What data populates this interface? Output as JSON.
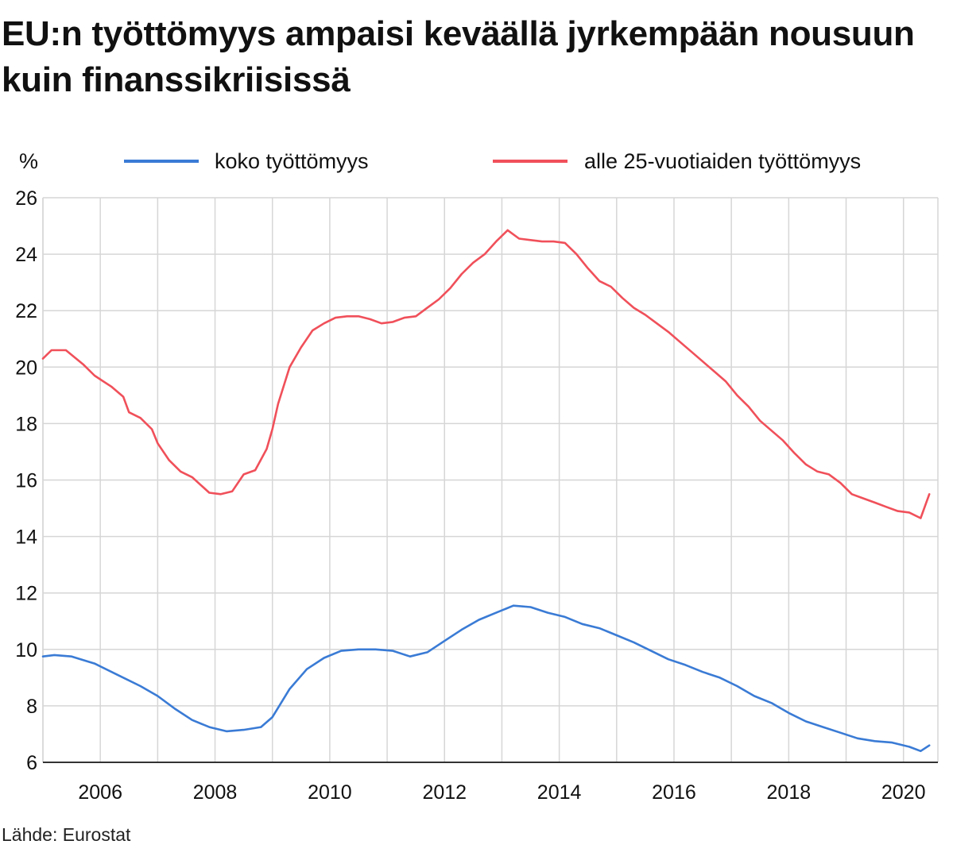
{
  "title": "EU:n työttömyys ampaisi keväällä jyrkempään nousuun kuin finanssikriisissä",
  "source": "Lähde: Eurostat",
  "chart_data": {
    "type": "line",
    "ylabel": "%",
    "ylim": [
      6,
      26
    ],
    "yticks": [
      "6",
      "8",
      "10",
      "12",
      "14",
      "16",
      "18",
      "20",
      "22",
      "24",
      "26"
    ],
    "xlim": [
      2005.0,
      2020.6
    ],
    "xticks": [
      "2006",
      "2008",
      "2010",
      "2012",
      "2014",
      "2016",
      "2018",
      "2020"
    ],
    "grid": true,
    "legend_position": "top",
    "series": [
      {
        "name": "koko työttömyys",
        "color": "#3a7bd5",
        "points": [
          [
            2005.0,
            9.75
          ],
          [
            2005.2,
            9.8
          ],
          [
            2005.5,
            9.75
          ],
          [
            2005.9,
            9.5
          ],
          [
            2006.3,
            9.1
          ],
          [
            2006.7,
            8.7
          ],
          [
            2007.0,
            8.35
          ],
          [
            2007.3,
            7.9
          ],
          [
            2007.6,
            7.5
          ],
          [
            2007.9,
            7.25
          ],
          [
            2008.2,
            7.1
          ],
          [
            2008.5,
            7.15
          ],
          [
            2008.8,
            7.25
          ],
          [
            2009.0,
            7.6
          ],
          [
            2009.3,
            8.6
          ],
          [
            2009.6,
            9.3
          ],
          [
            2009.9,
            9.7
          ],
          [
            2010.2,
            9.95
          ],
          [
            2010.5,
            10.0
          ],
          [
            2010.8,
            10.0
          ],
          [
            2011.1,
            9.95
          ],
          [
            2011.4,
            9.75
          ],
          [
            2011.7,
            9.9
          ],
          [
            2012.0,
            10.3
          ],
          [
            2012.3,
            10.7
          ],
          [
            2012.6,
            11.05
          ],
          [
            2012.9,
            11.3
          ],
          [
            2013.2,
            11.55
          ],
          [
            2013.5,
            11.5
          ],
          [
            2013.8,
            11.3
          ],
          [
            2014.1,
            11.15
          ],
          [
            2014.4,
            10.9
          ],
          [
            2014.7,
            10.75
          ],
          [
            2015.0,
            10.5
          ],
          [
            2015.3,
            10.25
          ],
          [
            2015.6,
            9.95
          ],
          [
            2015.9,
            9.65
          ],
          [
            2016.2,
            9.45
          ],
          [
            2016.5,
            9.2
          ],
          [
            2016.8,
            9.0
          ],
          [
            2017.1,
            8.7
          ],
          [
            2017.4,
            8.35
          ],
          [
            2017.7,
            8.1
          ],
          [
            2018.0,
            7.75
          ],
          [
            2018.3,
            7.45
          ],
          [
            2018.6,
            7.25
          ],
          [
            2018.9,
            7.05
          ],
          [
            2019.2,
            6.85
          ],
          [
            2019.5,
            6.75
          ],
          [
            2019.8,
            6.7
          ],
          [
            2020.1,
            6.55
          ],
          [
            2020.3,
            6.4
          ],
          [
            2020.45,
            6.6
          ]
        ]
      },
      {
        "name": "alle 25-vuotiaiden työttömyys",
        "color": "#f0505a",
        "points": [
          [
            2005.0,
            20.3
          ],
          [
            2005.15,
            20.6
          ],
          [
            2005.4,
            20.6
          ],
          [
            2005.7,
            20.1
          ],
          [
            2005.9,
            19.7
          ],
          [
            2006.2,
            19.3
          ],
          [
            2006.4,
            18.95
          ],
          [
            2006.5,
            18.4
          ],
          [
            2006.7,
            18.2
          ],
          [
            2006.9,
            17.8
          ],
          [
            2007.0,
            17.3
          ],
          [
            2007.2,
            16.7
          ],
          [
            2007.4,
            16.3
          ],
          [
            2007.6,
            16.1
          ],
          [
            2007.9,
            15.55
          ],
          [
            2008.1,
            15.5
          ],
          [
            2008.3,
            15.6
          ],
          [
            2008.5,
            16.2
          ],
          [
            2008.7,
            16.35
          ],
          [
            2008.9,
            17.1
          ],
          [
            2009.0,
            17.8
          ],
          [
            2009.1,
            18.7
          ],
          [
            2009.3,
            20.0
          ],
          [
            2009.5,
            20.7
          ],
          [
            2009.7,
            21.3
          ],
          [
            2009.9,
            21.55
          ],
          [
            2010.1,
            21.75
          ],
          [
            2010.3,
            21.8
          ],
          [
            2010.5,
            21.8
          ],
          [
            2010.7,
            21.7
          ],
          [
            2010.9,
            21.55
          ],
          [
            2011.1,
            21.6
          ],
          [
            2011.3,
            21.75
          ],
          [
            2011.5,
            21.8
          ],
          [
            2011.7,
            22.1
          ],
          [
            2011.9,
            22.4
          ],
          [
            2012.1,
            22.8
          ],
          [
            2012.3,
            23.3
          ],
          [
            2012.5,
            23.7
          ],
          [
            2012.7,
            24.0
          ],
          [
            2012.9,
            24.45
          ],
          [
            2013.1,
            24.85
          ],
          [
            2013.3,
            24.55
          ],
          [
            2013.5,
            24.5
          ],
          [
            2013.7,
            24.45
          ],
          [
            2013.9,
            24.45
          ],
          [
            2014.1,
            24.4
          ],
          [
            2014.3,
            24.0
          ],
          [
            2014.5,
            23.5
          ],
          [
            2014.7,
            23.05
          ],
          [
            2014.9,
            22.85
          ],
          [
            2015.1,
            22.45
          ],
          [
            2015.3,
            22.1
          ],
          [
            2015.5,
            21.85
          ],
          [
            2015.7,
            21.55
          ],
          [
            2015.9,
            21.25
          ],
          [
            2016.1,
            20.9
          ],
          [
            2016.3,
            20.55
          ],
          [
            2016.5,
            20.2
          ],
          [
            2016.7,
            19.85
          ],
          [
            2016.9,
            19.5
          ],
          [
            2017.1,
            19.0
          ],
          [
            2017.3,
            18.6
          ],
          [
            2017.5,
            18.1
          ],
          [
            2017.7,
            17.75
          ],
          [
            2017.9,
            17.4
          ],
          [
            2018.1,
            16.95
          ],
          [
            2018.3,
            16.55
          ],
          [
            2018.5,
            16.3
          ],
          [
            2018.7,
            16.2
          ],
          [
            2018.9,
            15.9
          ],
          [
            2019.1,
            15.5
          ],
          [
            2019.3,
            15.35
          ],
          [
            2019.5,
            15.2
          ],
          [
            2019.7,
            15.05
          ],
          [
            2019.9,
            14.9
          ],
          [
            2020.1,
            14.85
          ],
          [
            2020.3,
            14.65
          ],
          [
            2020.45,
            15.5
          ]
        ]
      }
    ]
  }
}
